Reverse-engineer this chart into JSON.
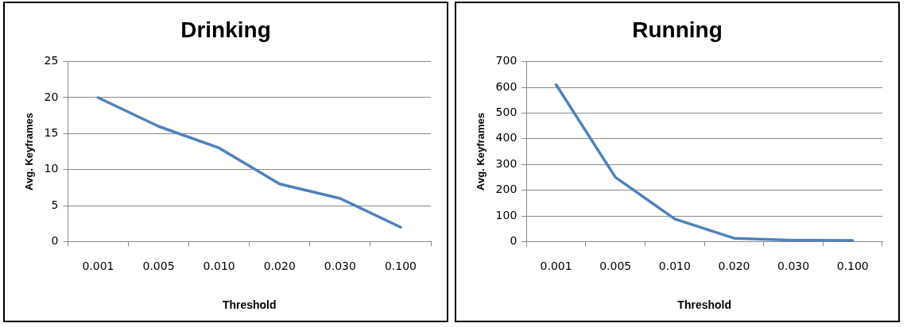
{
  "chart_data": [
    {
      "type": "line",
      "title": "Drinking",
      "xlabel": "Threshold",
      "ylabel": "Avg. Keyframes",
      "categories": [
        "0.001",
        "0.005",
        "0.010",
        "0.020",
        "0.030",
        "0.100"
      ],
      "series": [
        {
          "color": "#4f81bd",
          "values": [
            20,
            16,
            13,
            8,
            6,
            2
          ]
        }
      ],
      "ylim": [
        0,
        25
      ],
      "yticks": [
        0,
        5,
        10,
        15,
        20,
        25
      ],
      "grid": "y",
      "legend": false,
      "marker": "none",
      "line_style": "solid"
    },
    {
      "type": "line",
      "title": "Running",
      "xlabel": "Threshold",
      "ylabel": "Avg. Keyframes",
      "categories": [
        "0.001",
        "0.005",
        "0.010",
        "0.020",
        "0.030",
        "0.100"
      ],
      "series": [
        {
          "color": "#4f81bd",
          "values": [
            610,
            250,
            88,
            13,
            5,
            4
          ]
        }
      ],
      "ylim": [
        0,
        700
      ],
      "yticks": [
        0,
        100,
        200,
        300,
        400,
        500,
        600,
        700
      ],
      "grid": "y",
      "legend": false,
      "marker": "none",
      "line_style": "solid"
    }
  ]
}
